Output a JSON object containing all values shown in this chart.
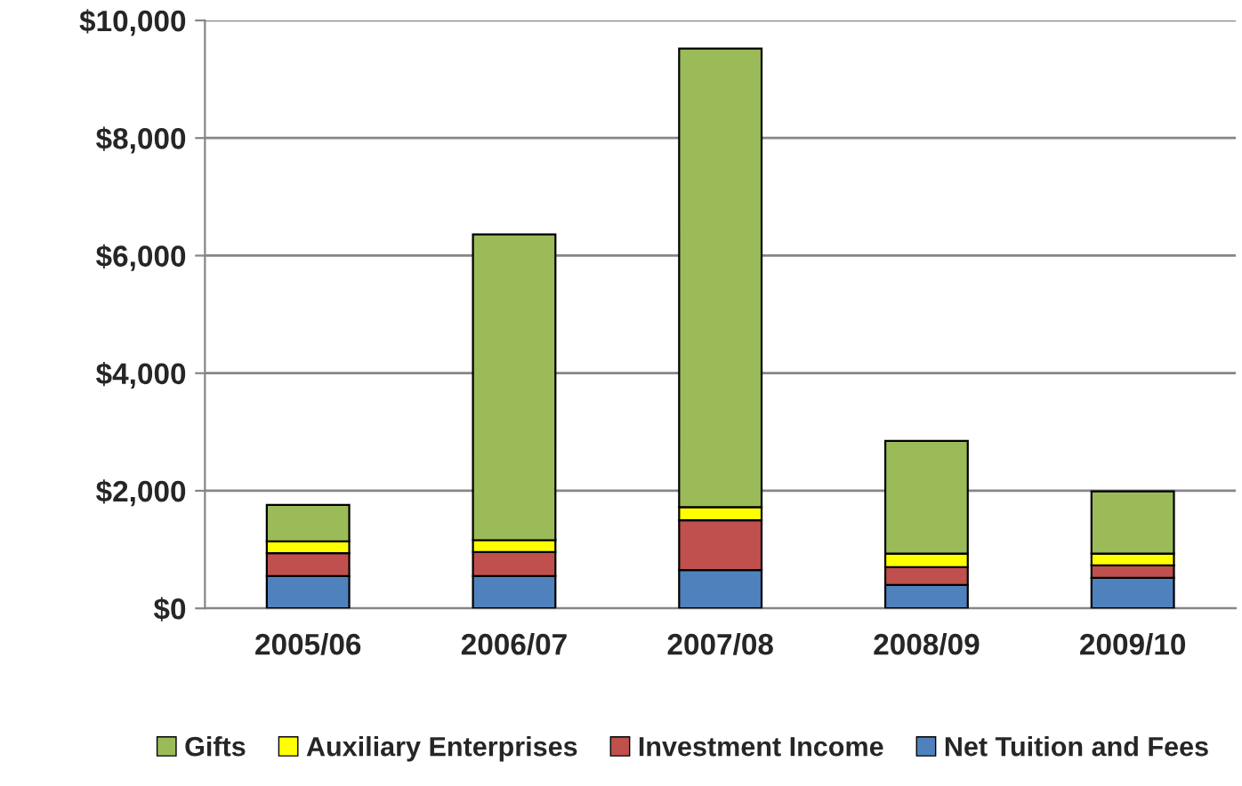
{
  "chart_data": {
    "type": "bar",
    "stacked": true,
    "categories": [
      "2005/06",
      "2006/07",
      "2007/08",
      "2008/09",
      "2009/10"
    ],
    "series": [
      {
        "name": "Net Tuition and Fees",
        "color": "#4f81bd",
        "values": [
          550,
          550,
          650,
          400,
          520
        ]
      },
      {
        "name": "Investment Income",
        "color": "#c0504d",
        "values": [
          390,
          410,
          850,
          300,
          210
        ]
      },
      {
        "name": "Auxiliary Enterprises",
        "color": "#ffff00",
        "values": [
          200,
          200,
          220,
          230,
          200
        ]
      },
      {
        "name": "Gifts",
        "color": "#9bbb59",
        "values": [
          620,
          5200,
          7800,
          1920,
          1060
        ]
      }
    ],
    "ylim": [
      0,
      10000
    ],
    "yticks": [
      {
        "value": 0,
        "label": "$0"
      },
      {
        "value": 2000,
        "label": "$2,000"
      },
      {
        "value": 4000,
        "label": "$4,000"
      },
      {
        "value": 6000,
        "label": "$6,000"
      },
      {
        "value": 8000,
        "label": "$8,000"
      },
      {
        "value": 10000,
        "label": "$10,000"
      }
    ],
    "grid": "y",
    "legend": "bottom"
  }
}
